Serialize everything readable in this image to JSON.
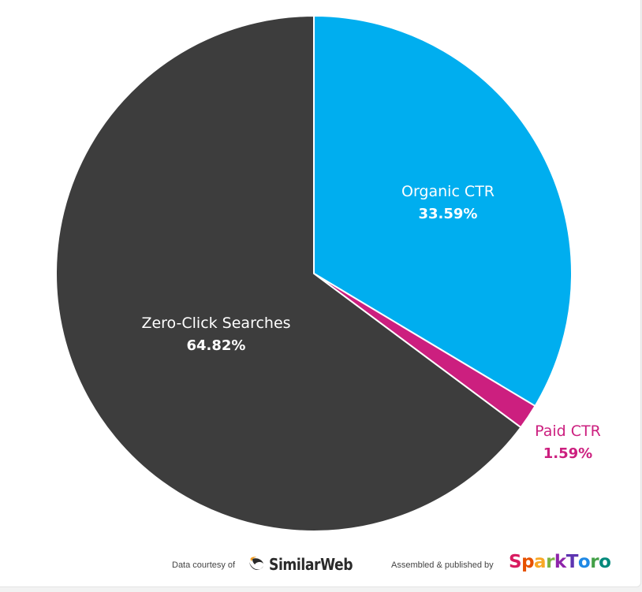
{
  "chart_data": {
    "type": "pie",
    "slices": [
      {
        "label": "Organic CTR",
        "value": 33.59,
        "value_label": "33.59%",
        "color": "#00aeef",
        "label_color": "#ffffff",
        "value_color": "#ffffff"
      },
      {
        "label": "Paid CTR",
        "value": 1.59,
        "value_label": "1.59%",
        "color": "#cc1f7f",
        "label_color": "#cc1f7f",
        "value_color": "#cc1f7f"
      },
      {
        "label": "Zero-Click Searches",
        "value": 64.82,
        "value_label": "64.82%",
        "color": "#3d3d3d",
        "label_color": "#ffffff",
        "value_color": "#ffffff"
      }
    ],
    "start": "12 o'clock",
    "direction": "clockwise",
    "slice_border_color": "#ffffff"
  },
  "footer": {
    "data_credit_prefix": "Data courtesy of",
    "data_source_logo_text": "SimilarWeb",
    "publisher_prefix": "Assembled & published by",
    "publisher_logo_text": "SparkToro",
    "similarweb_icon_color": "#2a2a2a",
    "similarweb_accent_color": "#f39c1f",
    "sparktoro_letter_colors": [
      "#d81b60",
      "#e65100",
      "#f9a825",
      "#7cb342",
      "#8e24aa",
      "#5e35b1",
      "#1e88e5",
      "#43a047",
      "#00897b"
    ]
  }
}
